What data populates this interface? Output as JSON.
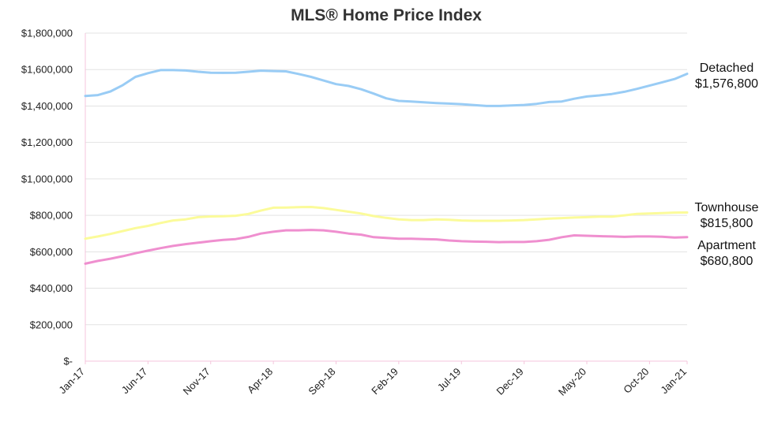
{
  "chart_data": {
    "type": "line",
    "title": "MLS® Home Price Index",
    "xlabel": "",
    "ylabel": "",
    "x_tick_labels": [
      "Jan-17",
      "Jun-17",
      "Nov-17",
      "Apr-18",
      "Sep-18",
      "Feb-19",
      "Jul-19",
      "Dec-19",
      "May-20",
      "Oct-20",
      "Jan-21"
    ],
    "x_tick_months": [
      0,
      5,
      10,
      15,
      20,
      25,
      30,
      35,
      40,
      45,
      48
    ],
    "x_range_months": [
      0,
      48
    ],
    "y_tick_labels": [
      "$-",
      "$200,000",
      "$400,000",
      "$600,000",
      "$800,000",
      "$1,000,000",
      "$1,200,000",
      "$1,400,000",
      "$1,600,000",
      "$1,800,000"
    ],
    "y_tick_values": [
      0,
      200000,
      400000,
      600000,
      800000,
      1000000,
      1200000,
      1400000,
      1600000,
      1800000
    ],
    "ylim": [
      0,
      1800000
    ],
    "grid": true,
    "legend": "end-of-line labels",
    "series": [
      {
        "name": "Detached",
        "end_value_label": "$1,576,800",
        "color": "#99ccf5",
        "values": [
          1455000,
          1460000,
          1480000,
          1515000,
          1560000,
          1580000,
          1597000,
          1597000,
          1595000,
          1588000,
          1583000,
          1582000,
          1583000,
          1588000,
          1594000,
          1592000,
          1590000,
          1576000,
          1560000,
          1540000,
          1520000,
          1510000,
          1492000,
          1468000,
          1442000,
          1428000,
          1425000,
          1420000,
          1416000,
          1413000,
          1410000,
          1405000,
          1400000,
          1400000,
          1403000,
          1406000,
          1412000,
          1422000,
          1425000,
          1440000,
          1452000,
          1458000,
          1466000,
          1478000,
          1494000,
          1512000,
          1530000,
          1548000,
          1576800
        ]
      },
      {
        "name": "Townhouse",
        "end_value_label": "$815,800",
        "color": "#fbfb9a",
        "values": [
          672000,
          684000,
          698000,
          714000,
          730000,
          742000,
          758000,
          772000,
          778000,
          790000,
          794000,
          795000,
          798000,
          808000,
          826000,
          842000,
          843000,
          845000,
          846000,
          840000,
          830000,
          820000,
          810000,
          796000,
          786000,
          778000,
          774000,
          774000,
          778000,
          776000,
          772000,
          770000,
          770000,
          770000,
          772000,
          774000,
          778000,
          782000,
          785000,
          788000,
          790000,
          793000,
          793000,
          800000,
          808000,
          810000,
          812000,
          815000,
          815800
        ]
      },
      {
        "name": "Apartment",
        "end_value_label": "$680,800",
        "color": "#ef8fcf",
        "values": [
          535000,
          550000,
          562000,
          576000,
          592000,
          606000,
          620000,
          632000,
          642000,
          650000,
          658000,
          665000,
          670000,
          682000,
          700000,
          710000,
          718000,
          718000,
          720000,
          718000,
          710000,
          700000,
          694000,
          680000,
          676000,
          672000,
          672000,
          670000,
          668000,
          662000,
          658000,
          656000,
          655000,
          653000,
          654000,
          654000,
          658000,
          666000,
          680000,
          690000,
          688000,
          686000,
          684000,
          682000,
          684000,
          684000,
          683000,
          678000,
          680800
        ]
      }
    ]
  }
}
